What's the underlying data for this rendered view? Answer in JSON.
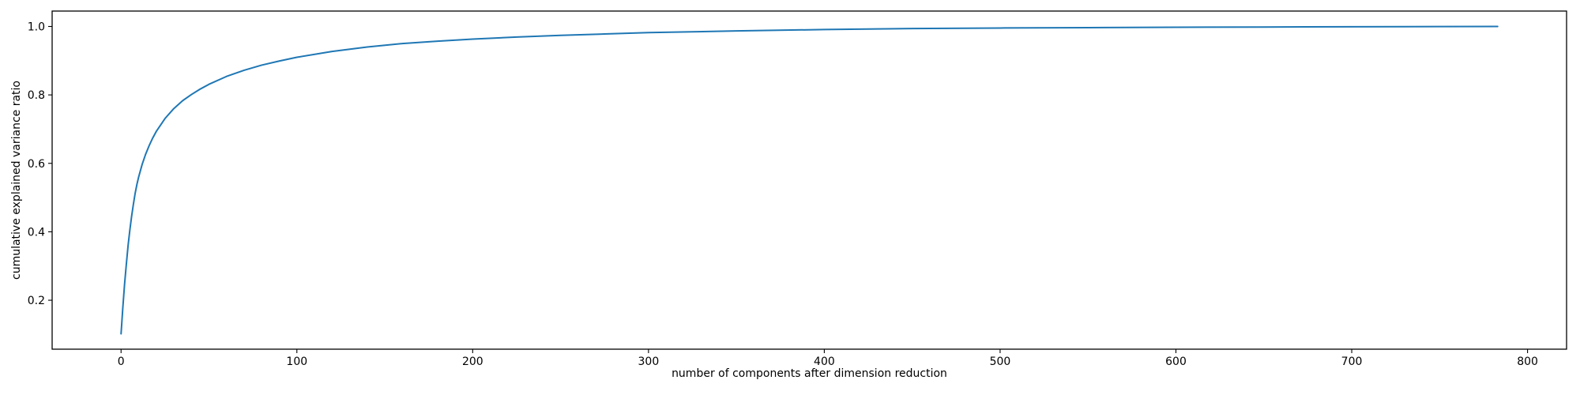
{
  "chart_data": {
    "type": "line",
    "title": "",
    "xlabel": "number of components after dimension reduction",
    "ylabel": "cumulative explained variance ratio",
    "x_ticks": [
      0,
      100,
      200,
      300,
      400,
      500,
      600,
      700,
      800
    ],
    "y_ticks": [
      0.2,
      0.4,
      0.6,
      0.8,
      1.0
    ],
    "xlim": [
      -39.2,
      822.2
    ],
    "ylim": [
      0.057,
      1.045
    ],
    "grid": false,
    "legend": "none",
    "colors": {
      "line": "#1f77b4",
      "spine": "#000000",
      "tick": "#000000",
      "text": "#000000",
      "background": "#ffffff"
    },
    "line_width": 2,
    "series": [
      {
        "name": "cumulative explained variance ratio",
        "points": [
          [
            0,
            0.102
          ],
          [
            1,
            0.178
          ],
          [
            2,
            0.247
          ],
          [
            3,
            0.305
          ],
          [
            4,
            0.36
          ],
          [
            5,
            0.405
          ],
          [
            6,
            0.445
          ],
          [
            7,
            0.48
          ],
          [
            8,
            0.512
          ],
          [
            9,
            0.538
          ],
          [
            10,
            0.56
          ],
          [
            12,
            0.597
          ],
          [
            14,
            0.627
          ],
          [
            16,
            0.652
          ],
          [
            18,
            0.674
          ],
          [
            20,
            0.693
          ],
          [
            25,
            0.731
          ],
          [
            30,
            0.76
          ],
          [
            35,
            0.783
          ],
          [
            40,
            0.801
          ],
          [
            45,
            0.817
          ],
          [
            50,
            0.831
          ],
          [
            60,
            0.854
          ],
          [
            70,
            0.872
          ],
          [
            80,
            0.887
          ],
          [
            90,
            0.899
          ],
          [
            100,
            0.91
          ],
          [
            120,
            0.927
          ],
          [
            140,
            0.94
          ],
          [
            160,
            0.95
          ],
          [
            180,
            0.957
          ],
          [
            200,
            0.963
          ],
          [
            225,
            0.969
          ],
          [
            250,
            0.974
          ],
          [
            275,
            0.978
          ],
          [
            300,
            0.982
          ],
          [
            350,
            0.987
          ],
          [
            400,
            0.991
          ],
          [
            450,
            0.994
          ],
          [
            500,
            0.9955
          ],
          [
            550,
            0.9966
          ],
          [
            600,
            0.9976
          ],
          [
            650,
            0.9984
          ],
          [
            700,
            0.9991
          ],
          [
            750,
            0.9996
          ],
          [
            783,
            1.0
          ]
        ]
      }
    ]
  }
}
